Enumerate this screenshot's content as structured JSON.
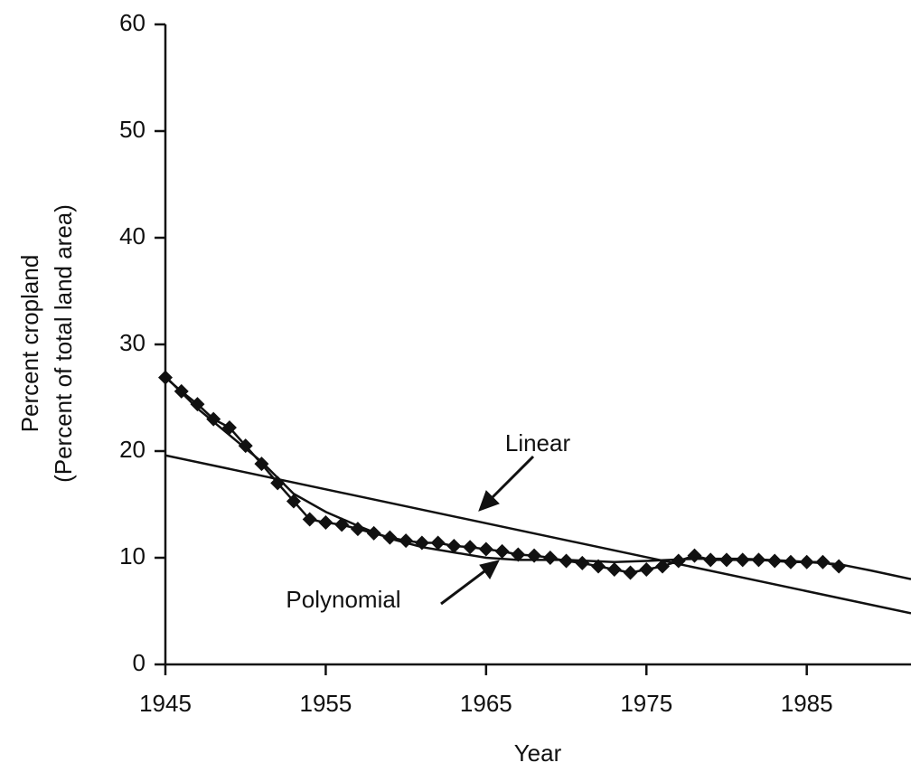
{
  "chart_data": {
    "type": "line",
    "xlabel": "Year",
    "ylabel": [
      "Percent cropland",
      "(Percent of total land area)"
    ],
    "xlim": [
      1945,
      1991.5
    ],
    "xticks": [
      1945,
      1955,
      1965,
      1975,
      1985
    ],
    "ylim": [
      0,
      60
    ],
    "yticks": [
      0,
      10,
      20,
      30,
      40,
      50,
      60
    ],
    "grid": false,
    "series": [
      {
        "color": "#111111",
        "marker": "diamond",
        "x": [
          1945,
          1946,
          1947,
          1948,
          1949,
          1950,
          1951,
          1952,
          1953,
          1954,
          1955,
          1956,
          1957,
          1958,
          1959,
          1960,
          1961,
          1962,
          1963,
          1964,
          1965,
          1966,
          1967,
          1968,
          1969,
          1970,
          1971,
          1972,
          1973,
          1974,
          1975,
          1976,
          1977,
          1978,
          1979,
          1980,
          1981,
          1982,
          1983,
          1984,
          1985,
          1986,
          1987
        ],
        "values": [
          26.9,
          25.6,
          24.4,
          23.0,
          22.2,
          20.5,
          18.8,
          17.0,
          15.3,
          13.6,
          13.3,
          13.1,
          12.7,
          12.3,
          11.9,
          11.6,
          11.4,
          11.4,
          11.1,
          11.0,
          10.8,
          10.6,
          10.3,
          10.2,
          10.0,
          9.7,
          9.5,
          9.2,
          8.9,
          8.6,
          8.9,
          9.2,
          9.7,
          10.2,
          9.8,
          9.8,
          9.8,
          9.8,
          9.7,
          9.6,
          9.6,
          9.6,
          9.2
        ]
      },
      {
        "color": "#111111",
        "marker": "none",
        "x": [
          1945,
          1991.5
        ],
        "values": [
          19.6,
          4.8
        ]
      },
      {
        "color": "#111111",
        "marker": "none",
        "x": [
          1945,
          1947,
          1949,
          1951,
          1953,
          1955,
          1957,
          1959,
          1961,
          1963,
          1965,
          1967,
          1970,
          1973,
          1975,
          1978,
          1981,
          1984,
          1987,
          1989,
          1991.5
        ],
        "values": [
          27.0,
          24.0,
          21.5,
          19.0,
          16.0,
          14.3,
          13.0,
          11.8,
          11.0,
          10.5,
          10.0,
          9.8,
          9.8,
          9.6,
          9.7,
          9.9,
          9.9,
          9.7,
          9.4,
          8.8,
          8.0
        ]
      }
    ],
    "annotations": [
      "Linear",
      "Polynomial"
    ]
  }
}
